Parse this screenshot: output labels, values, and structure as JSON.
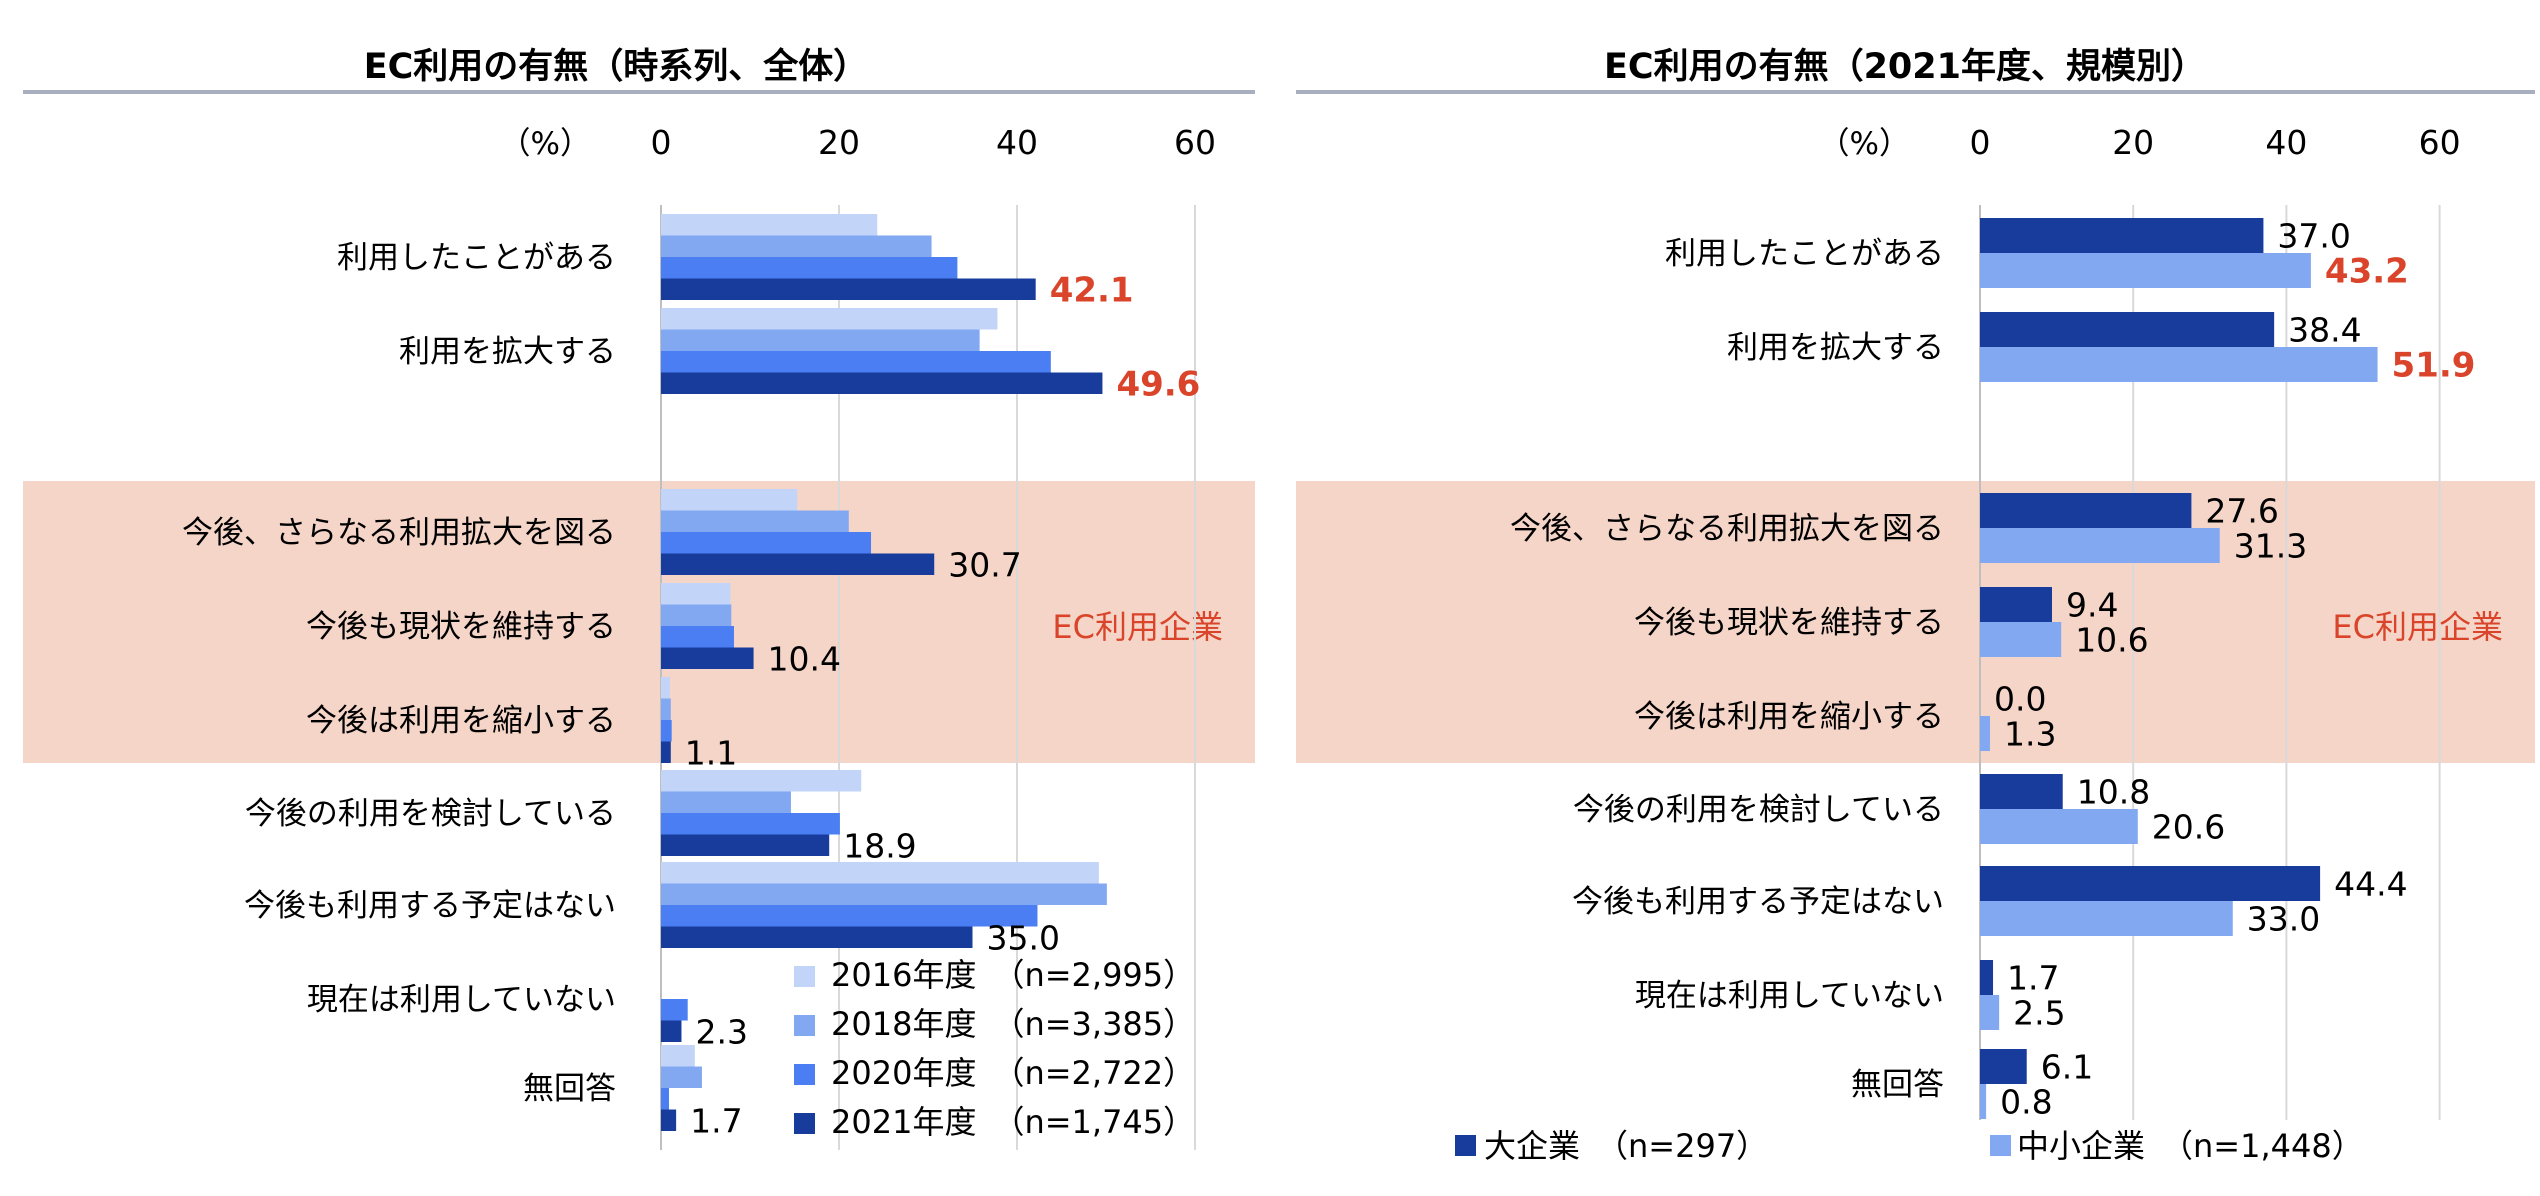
{
  "colors": {
    "y2016": "#c2d5f9",
    "y2018": "#82a8f2",
    "y2020": "#4a7ef2",
    "y2021": "#173c9c",
    "large": "#173c9c",
    "sme": "#82a8f2",
    "highlight_text": "#d9442a",
    "band": "#f5d5c8",
    "rule": "#a8b0c0",
    "grid": "#d9d9d9"
  },
  "band_label": "EC利用企業",
  "chart_data": [
    {
      "type": "bar",
      "orientation": "horizontal",
      "title": "EC利用の有無（時系列、全体）",
      "unit_label": "（%）",
      "xlim": [
        0,
        60
      ],
      "xticks": [
        "0",
        "20",
        "40",
        "60"
      ],
      "grid": true,
      "legend_position": "bottom-right",
      "categories": [
        "利用したことがある",
        "利用を拡大する",
        "今後、さらなる利用拡大を図る",
        "今後も現状を維持する",
        "今後は利用を縮小する",
        "今後の利用を検討している",
        "今後も利用する予定はない",
        "現在は利用していない",
        "無回答"
      ],
      "series": [
        {
          "name": "2016年度　（n=2,995）",
          "color_key": "y2016",
          "values": [
            24.3,
            37.8,
            15.3,
            7.8,
            1.0,
            22.5,
            49.2,
            null,
            3.8
          ]
        },
        {
          "name": "2018年度　（n=3,385）",
          "color_key": "y2018",
          "values": [
            30.4,
            35.8,
            21.1,
            7.9,
            1.1,
            14.6,
            50.1,
            null,
            4.6
          ]
        },
        {
          "name": "2020年度　（n=2,722）",
          "color_key": "y2020",
          "values": [
            33.3,
            43.8,
            23.6,
            8.2,
            1.2,
            20.1,
            42.3,
            3.0,
            0.9
          ]
        },
        {
          "name": "2021年度　（n=1,745）",
          "color_key": "y2021",
          "values": [
            42.1,
            49.6,
            30.7,
            10.4,
            1.1,
            18.9,
            35.0,
            2.3,
            1.7
          ],
          "labels": [
            "42.1",
            "49.6",
            "30.7",
            "10.4",
            "1.1",
            "18.9",
            "35.0",
            "2.3",
            "1.7"
          ]
        }
      ],
      "highlighted_labels": [
        0,
        1
      ],
      "band_categories": [
        2,
        3,
        4
      ]
    },
    {
      "type": "bar",
      "orientation": "horizontal",
      "title": "EC利用の有無（2021年度、規模別）",
      "unit_label": "（%）",
      "xlim": [
        0,
        60
      ],
      "xticks": [
        "0",
        "20",
        "40",
        "60"
      ],
      "grid": true,
      "legend_position": "bottom",
      "categories": [
        "利用したことがある",
        "利用を拡大する",
        "今後、さらなる利用拡大を図る",
        "今後も現状を維持する",
        "今後は利用を縮小する",
        "今後の利用を検討している",
        "今後も利用する予定はない",
        "現在は利用していない",
        "無回答"
      ],
      "series": [
        {
          "name": "大企業　（n=297）",
          "color_key": "large",
          "values": [
            37.0,
            38.4,
            27.6,
            9.4,
            0.0,
            10.8,
            44.4,
            1.7,
            6.1
          ],
          "labels": [
            "37.0",
            "38.4",
            "27.6",
            "9.4",
            "0.0",
            "10.8",
            "44.4",
            "1.7",
            "6.1"
          ]
        },
        {
          "name": "中小企業　（n=1,448）",
          "color_key": "sme",
          "values": [
            43.2,
            51.9,
            31.3,
            10.6,
            1.3,
            20.6,
            33.0,
            2.5,
            0.8
          ],
          "labels": [
            "43.2",
            "51.9",
            "31.3",
            "10.6",
            "1.3",
            "20.6",
            "33.0",
            "2.5",
            "0.8"
          ]
        }
      ],
      "highlighted_labels": [
        0,
        1
      ],
      "highlighted_series": 1,
      "band_categories": [
        2,
        3,
        4
      ]
    }
  ]
}
